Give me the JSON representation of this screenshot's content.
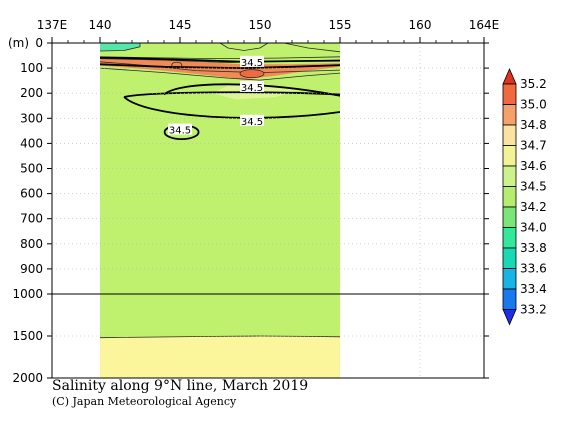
{
  "chart_data": {
    "type": "heatmap",
    "title": "Salinity along 9°N line, March 2019",
    "credit": "(C) Japan Meteorological Agency",
    "x_axis": {
      "range": [
        137,
        164
      ],
      "ticks": [
        {
          "value": 137,
          "label": "137E"
        },
        {
          "value": 140,
          "label": "140"
        },
        {
          "value": 145,
          "label": "145"
        },
        {
          "value": 150,
          "label": "150"
        },
        {
          "value": 155,
          "label": "155"
        },
        {
          "value": 160,
          "label": "160"
        },
        {
          "value": 164,
          "label": "164E"
        }
      ]
    },
    "y_axis": {
      "unit_label": "(m)",
      "ticks_upper": [
        0,
        100,
        200,
        300,
        400,
        500,
        600,
        700,
        800,
        900,
        1000
      ],
      "ticks_lower": [
        1500,
        2000
      ],
      "break_depth": 1000
    },
    "data_extent": {
      "lon": [
        140,
        155
      ],
      "depth": [
        0,
        2000
      ]
    },
    "colorbar": {
      "levels": [
        33.0,
        33.2,
        33.4,
        33.6,
        33.8,
        34.0,
        34.2,
        34.5,
        34.6,
        34.7,
        34.8,
        35.0,
        35.2
      ],
      "colors": [
        "#1e2de6",
        "#1778ef",
        "#18b4e6",
        "#18d9b4",
        "#33e89a",
        "#7be678",
        "#b7ec6f",
        "#cdf28b",
        "#f2f394",
        "#fbe2a0",
        "#f4a16a",
        "#f06a3d",
        "#e0331f"
      ]
    },
    "fields": {
      "base_color": "#bff06e",
      "deep_color": "#fbf59b",
      "cyan_patch_color": "#56e6a8",
      "orange_core_color": "#f28a55",
      "light_patch_color": "#ddf593"
    },
    "contour_labels": [
      {
        "text": "34.5",
        "lon": 149.5,
        "depth": 75
      },
      {
        "text": "34.5",
        "lon": 149.5,
        "depth": 175
      },
      {
        "text": "34.5",
        "lon": 149.5,
        "depth": 310
      },
      {
        "text": "34.5",
        "lon": 145.0,
        "depth": 345
      }
    ]
  }
}
